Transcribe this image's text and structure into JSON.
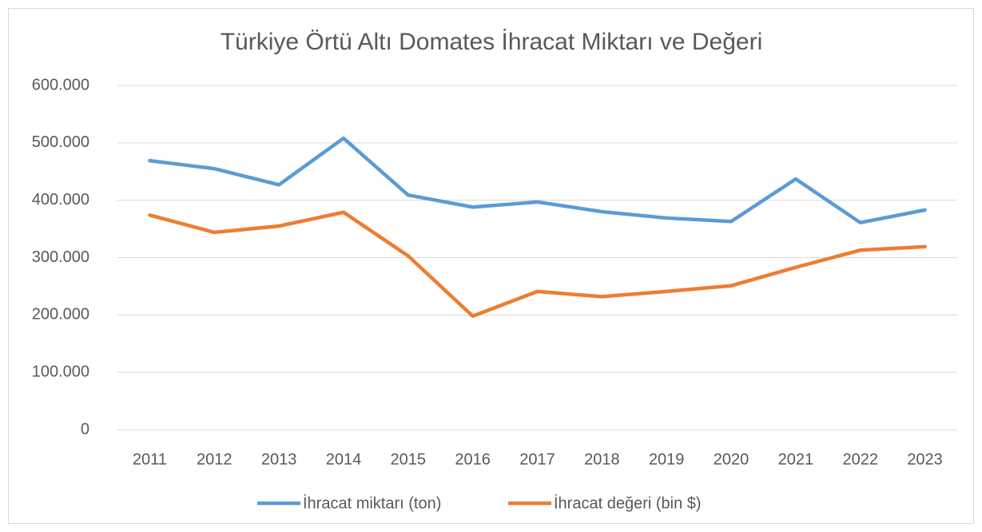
{
  "chart_data": {
    "type": "line",
    "title": "Türkiye Örtü Altı Domates İhracat Miktarı ve Değeri",
    "categories": [
      "2011",
      "2012",
      "2013",
      "2014",
      "2015",
      "2016",
      "2017",
      "2018",
      "2019",
      "2020",
      "2021",
      "2022",
      "2023"
    ],
    "series": [
      {
        "name": "İhracat miktarı (ton)",
        "color": "#5b9bd5",
        "values": [
          469000,
          455000,
          427000,
          508000,
          409000,
          388000,
          397000,
          380000,
          369000,
          363000,
          437000,
          361000,
          383000
        ]
      },
      {
        "name": "İhracat değeri (bin $)",
        "color": "#ed7d31",
        "values": [
          374000,
          344000,
          355000,
          379000,
          303000,
          198000,
          241000,
          232000,
          241000,
          251000,
          283000,
          313000,
          319000
        ]
      }
    ],
    "ylim": [
      0,
      600000
    ],
    "yticks": [
      0,
      {
        "value": 100000,
        "label": "100.000"
      },
      {
        "value": 200000,
        "label": "200.000"
      },
      {
        "value": 300000,
        "label": "300.000"
      },
      {
        "value": 400000,
        "label": "400.000"
      },
      {
        "value": 500000,
        "label": "500.000"
      },
      {
        "value": 600000,
        "label": "600.000"
      }
    ],
    "grid": true,
    "legend": "bottom"
  }
}
